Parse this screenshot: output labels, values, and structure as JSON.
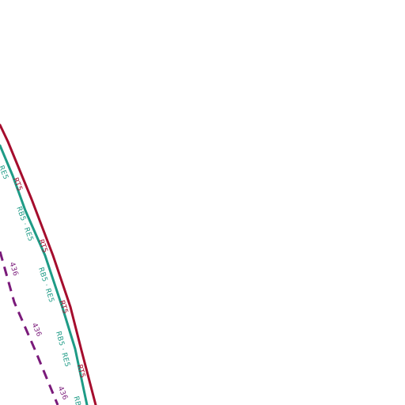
{
  "map": {
    "background_color": "#ffffff",
    "routes": [
      {
        "id": "rt5",
        "label": "RT5",
        "color": "#a50d2d",
        "line_style": "solid"
      },
      {
        "id": "rb5-re5",
        "label": "RB5 · RE5",
        "color": "#1e9b86",
        "line_style": "solid"
      },
      {
        "id": "bus-436",
        "label": "436",
        "color": "#7a1a7a",
        "line_style": "dashed"
      }
    ],
    "labels": {
      "rt5": [
        "RT5",
        "RT5",
        "RT5",
        "RT5"
      ],
      "rb5_re5": [
        "RE5",
        "RB5 · RE5",
        "RB5 · RE5",
        "RB5 · RE5",
        "RB"
      ],
      "bus_436": [
        "436",
        "436",
        "436"
      ]
    }
  }
}
